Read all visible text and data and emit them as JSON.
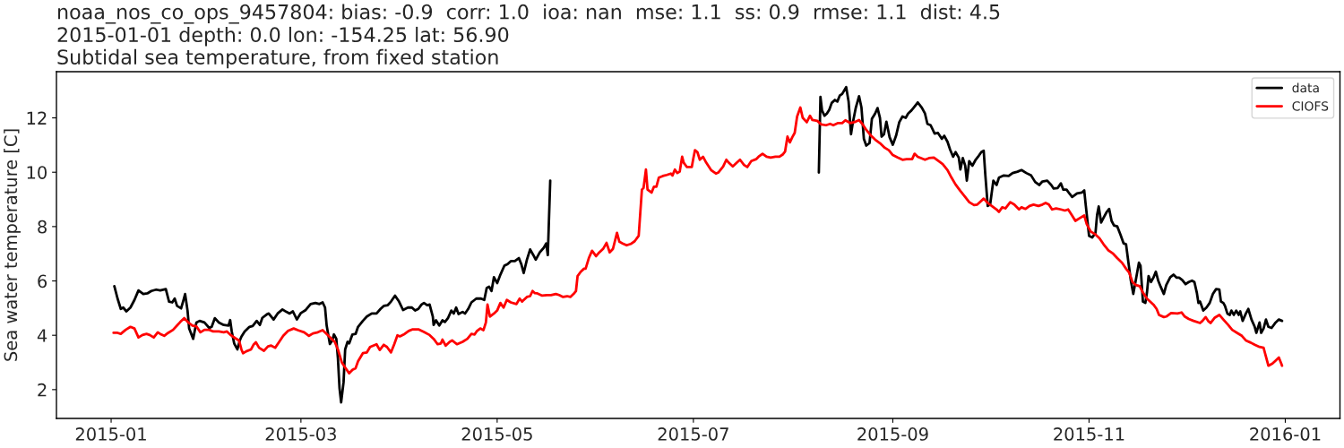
{
  "chart_data": {
    "type": "line",
    "title": "noaa_nos_co_ops_9457804: bias: -0.9  corr: 1.0  ioa: nan  mse: 1.1  ss: 0.9  rmse: 1.1  dist: 4.5\n2015-01-01 depth: 0.0 lon: -154.25 lat: 56.90\nSubtidal sea temperature, from fixed station",
    "ylabel": "Sea water temperature [C]",
    "xlim": [
      "2014-12-15T00:00",
      "2016-01-18T00:00"
    ],
    "xticks": [
      {
        "value": "2015-01-01",
        "label": "2015-01"
      },
      {
        "value": "2015-03-01",
        "label": "2015-03"
      },
      {
        "value": "2015-05-01",
        "label": "2015-05"
      },
      {
        "value": "2015-07-01",
        "label": "2015-07"
      },
      {
        "value": "2015-09-01",
        "label": "2015-09"
      },
      {
        "value": "2015-11-01",
        "label": "2015-11"
      },
      {
        "value": "2016-01-01",
        "label": "2016-01"
      }
    ],
    "ylim": [
      0.94,
      13.7
    ],
    "yticks": [
      2,
      4,
      6,
      8,
      10,
      12
    ],
    "legend": "top right",
    "series": [
      {
        "name": "data",
        "color": "#000000",
        "x": [
          "2015-01-02T00:00",
          "2015-01-03T00:00",
          "2015-01-04T00:00",
          "2015-01-04T18:00",
          "2015-01-05T18:00",
          "2015-01-07T00:00",
          "2015-01-08T06:00",
          "2015-01-09T12:00",
          "2015-01-11T00:00",
          "2015-01-12T06:00",
          "2015-01-13T12:00",
          "2015-01-15T00:00",
          "2015-01-16T06:00",
          "2015-01-18T00:00",
          "2015-01-19T00:00",
          "2015-01-20T00:00",
          "2015-01-20T18:00",
          "2015-01-21T12:00",
          "2015-01-22T18:00",
          "2015-01-23T12:00",
          "2015-01-24T00:00",
          "2015-01-24T18:00",
          "2015-01-25T06:00",
          "2015-01-26T12:00",
          "2015-01-27T12:00",
          "2015-01-28T12:00",
          "2015-01-30T00:00",
          "2015-01-31T12:00",
          "2015-02-01T06:00",
          "2015-02-02T06:00",
          "2015-02-03T12:00",
          "2015-02-05T00:00",
          "2015-02-06T12:00",
          "2015-02-07T00:00",
          "2015-02-07T12:00",
          "2015-02-08T06:00",
          "2015-02-09T06:00",
          "2015-02-10T00:00",
          "2015-02-10T12:00",
          "2015-02-11T12:00",
          "2015-02-13T00:00",
          "2015-02-14T00:00",
          "2015-02-15T06:00",
          "2015-02-16T06:00",
          "2015-02-17T00:00",
          "2015-02-18T12:00",
          "2015-02-19T00:00",
          "2015-02-20T12:00",
          "2015-02-21T18:00",
          "2015-02-23T06:00",
          "2015-02-24T12:00",
          "2015-02-25T12:00",
          "2015-02-26T12:00",
          "2015-02-27T18:00",
          "2015-03-01T00:00",
          "2015-03-02T12:00",
          "2015-03-04T00:00",
          "2015-03-05T12:00",
          "2015-03-06T18:00",
          "2015-03-07T18:00",
          "2015-03-08T12:00",
          "2015-03-09T00:00",
          "2015-03-10T00:00",
          "2015-03-10T18:00",
          "2015-03-11T06:00",
          "2015-03-12T00:00",
          "2015-03-12T12:00",
          "2015-03-13T00:00",
          "2015-03-13T12:00",
          "2015-03-14T06:00",
          "2015-03-14T18:00",
          "2015-03-15T12:00",
          "2015-03-16T00:00",
          "2015-03-17T00:00",
          "2015-03-18T00:00",
          "2015-03-18T18:00",
          "2015-03-20T06:00",
          "2015-03-21T12:00",
          "2015-03-23T00:00",
          "2015-03-24T12:00",
          "2015-03-25T18:00",
          "2015-03-26T18:00",
          "2015-03-28T00:00",
          "2015-03-29T00:00",
          "2015-03-30T06:00",
          "2015-03-31T12:00",
          "2015-04-01T18:00",
          "2015-04-03T06:00",
          "2015-04-04T12:00",
          "2015-04-05T12:00",
          "2015-04-06T12:00",
          "2015-04-07T12:00",
          "2015-04-08T06:00",
          "2015-04-09T06:00",
          "2015-04-10T00:00",
          "2015-04-11T00:00",
          "2015-04-11T06:00",
          "2015-04-12T00:00",
          "2015-04-13T00:00",
          "2015-04-14T00:00",
          "2015-04-14T18:00",
          "2015-04-15T18:00",
          "2015-04-16T18:00",
          "2015-04-17T12:00",
          "2015-04-18T06:00",
          "2015-04-19T00:00",
          "2015-04-20T06:00",
          "2015-04-21T00:00",
          "2015-04-22T00:00",
          "2015-04-23T00:00",
          "2015-04-24T12:00",
          "2015-04-26T00:00",
          "2015-04-27T00:00",
          "2015-04-27T18:00",
          "2015-04-28T12:00",
          "2015-04-29T06:00",
          "2015-04-30T00:00",
          "2015-05-01T00:00",
          "2015-05-02T00:00",
          "2015-05-03T06:00",
          "2015-05-04T06:00",
          "2015-05-05T06:00",
          "2015-05-06T12:00",
          "2015-05-07T18:00",
          "2015-05-08T12:00",
          "2015-05-09T06:00",
          "2015-05-10T06:00",
          "2015-05-11T06:00",
          "2015-05-12T06:00",
          "2015-05-13T00:00",
          "2015-05-14T06:00",
          "2015-05-15T12:00",
          "2015-05-16T06:00",
          "2015-05-16T18:00",
          "2015-05-17T12:00",
          "2015-06-30T00:00",
          "2015-08-09T00:00",
          "2015-08-09T12:00",
          "2015-08-10T00:00",
          "2015-08-10T18:00",
          "2015-08-11T12:00",
          "2015-08-12T06:00",
          "2015-08-13T00:00",
          "2015-08-14T00:00",
          "2015-08-14T18:00",
          "2015-08-15T12:00",
          "2015-08-16T06:00",
          "2015-08-17T12:00",
          "2015-08-18T06:00",
          "2015-08-19T00:00",
          "2015-08-19T12:00",
          "2015-08-20T12:00",
          "2015-08-21T12:00",
          "2015-08-22T06:00",
          "2015-08-23T00:00",
          "2015-08-23T18:00",
          "2015-08-24T18:00",
          "2015-08-25T12:00",
          "2015-08-26T12:00",
          "2015-08-27T06:00",
          "2015-08-28T00:00",
          "2015-08-28T12:00",
          "2015-08-29T06:00",
          "2015-08-30T00:00",
          "2015-08-31T00:00",
          "2015-09-01T00:00",
          "2015-09-02T00:00",
          "2015-09-03T00:00",
          "2015-09-04T00:00",
          "2015-09-05T00:00",
          "2015-09-05T18:00",
          "2015-09-06T18:00",
          "2015-09-07T12:00",
          "2015-09-08T18:00",
          "2015-09-10T00:00",
          "2015-09-11T00:00",
          "2015-09-11T18:00",
          "2015-09-12T18:00",
          "2015-09-14T00:00",
          "2015-09-15T00:00",
          "2015-09-16T06:00",
          "2015-09-17T00:00",
          "2015-09-18T00:00",
          "2015-09-18T18:00",
          "2015-09-19T18:00",
          "2015-09-20T12:00",
          "2015-09-21T12:00",
          "2015-09-22T00:00",
          "2015-09-22T18:00",
          "2015-09-23T12:00",
          "2015-09-24T00:00",
          "2015-09-24T18:00",
          "2015-09-25T18:00",
          "2015-09-26T18:00",
          "2015-09-27T12:00",
          "2015-09-28T12:00",
          "2015-09-29T06:00",
          "2015-09-29T18:00",
          "2015-09-30T12:00",
          "2015-10-01T06:00",
          "2015-10-02T06:00",
          "2015-10-03T06:00",
          "2015-10-04T00:00",
          "2015-10-05T12:00",
          "2015-10-07T00:00",
          "2015-10-08T06:00",
          "2015-10-09T18:00",
          "2015-10-11T00:00",
          "2015-10-12T12:00",
          "2015-10-14T00:00",
          "2015-10-15T06:00",
          "2015-10-16T12:00",
          "2015-10-17T12:00",
          "2015-10-19T00:00",
          "2015-10-20T06:00",
          "2015-10-21T00:00",
          "2015-10-22T06:00",
          "2015-10-23T06:00",
          "2015-10-24T00:00",
          "2015-10-25T00:00",
          "2015-10-26T00:00",
          "2015-10-26T18:00",
          "2015-10-28T06:00",
          "2015-10-29T18:00",
          "2015-10-30T12:00",
          "2015-10-31T00:00",
          "2015-11-01T00:00",
          "2015-11-02T00:00",
          "2015-11-03T00:00",
          "2015-11-03T12:00",
          "2015-11-04T00:00",
          "2015-11-04T18:00",
          "2015-11-05T12:00",
          "2015-11-06T12:00",
          "2015-11-07T06:00",
          "2015-11-08T00:00",
          "2015-11-08T18:00",
          "2015-11-09T18:00",
          "2015-11-10T18:00",
          "2015-11-11T18:00",
          "2015-11-12T12:00",
          "2015-11-13T06:00",
          "2015-11-14T00:00",
          "2015-11-14T18:00",
          "2015-11-15T12:00",
          "2015-11-16T12:00",
          "2015-11-17T00:00",
          "2015-11-17T18:00",
          "2015-11-18T12:00",
          "2015-11-19T00:00",
          "2015-11-19T12:00",
          "2015-11-20T06:00",
          "2015-11-21T00:00",
          "2015-11-21T18:00",
          "2015-11-22T12:00",
          "2015-11-23T06:00",
          "2015-11-24T06:00",
          "2015-11-25T00:00",
          "2015-11-26T06:00",
          "2015-11-27T06:00",
          "2015-11-28T06:00",
          "2015-11-29T00:00",
          "2015-11-30T00:00",
          "2015-12-01T00:00",
          "2015-12-02T00:00",
          "2015-12-03T00:00",
          "2015-12-03T18:00",
          "2015-12-04T12:00",
          "2015-12-05T00:00",
          "2015-12-05T12:00",
          "2015-12-06T12:00",
          "2015-12-07T12:00",
          "2015-12-08T12:00",
          "2015-12-09T12:00",
          "2015-12-10T12:00",
          "2015-12-11T12:00",
          "2015-12-12T00:00",
          "2015-12-12T18:00",
          "2015-12-13T06:00",
          "2015-12-14T00:00",
          "2015-12-14T18:00",
          "2015-12-15T06:00",
          "2015-12-16T00:00",
          "2015-12-16T18:00",
          "2015-12-17T12:00",
          "2015-12-18T00:00",
          "2015-12-18T18:00",
          "2015-12-19T18:00",
          "2015-12-20T12:00",
          "2015-12-21T12:00",
          "2015-12-22T12:00",
          "2015-12-23T00:00",
          "2015-12-24T00:00",
          "2015-12-24T12:00",
          "2015-12-25T06:00",
          "2015-12-26T00:00",
          "2015-12-26T18:00",
          "2015-12-27T18:00",
          "2015-12-29T00:00",
          "2015-12-30T00:00",
          "2015-12-31T00:00"
        ],
        "values": [
          5.81,
          5.35,
          4.97,
          5.02,
          4.88,
          5.02,
          5.3,
          5.65,
          5.52,
          5.54,
          5.63,
          5.68,
          5.65,
          5.7,
          5.24,
          5.21,
          5.35,
          5.08,
          4.99,
          5.3,
          5.52,
          4.91,
          4.25,
          3.87,
          4.47,
          4.53,
          4.47,
          4.27,
          4.31,
          4.63,
          4.47,
          4.38,
          4.36,
          4.56,
          4.14,
          3.7,
          3.48,
          3.81,
          3.95,
          4.14,
          4.31,
          4.34,
          4.53,
          4.38,
          4.64,
          4.78,
          4.8,
          4.58,
          4.8,
          4.95,
          4.86,
          4.8,
          4.88,
          4.58,
          4.82,
          4.93,
          5.15,
          5.19,
          5.15,
          5.21,
          5.02,
          4.36,
          3.68,
          3.81,
          4.03,
          3.87,
          3.15,
          2.05,
          1.53,
          2.27,
          3.48,
          3.76,
          3.7,
          4.03,
          4.05,
          4.31,
          4.53,
          4.69,
          4.8,
          4.8,
          4.97,
          5.08,
          5.11,
          5.24,
          5.46,
          5.24,
          4.93,
          5.02,
          5.02,
          4.91,
          4.97,
          5.13,
          5.19,
          5.11,
          5.13,
          4.69,
          4.38,
          4.55,
          4.36,
          4.55,
          4.49,
          4.64,
          4.91,
          4.8,
          5.02,
          4.78,
          4.86,
          4.8,
          4.97,
          5.21,
          5.35,
          5.35,
          5.3,
          5.74,
          5.79,
          5.63,
          6.14,
          5.92,
          6.23,
          6.56,
          6.62,
          6.73,
          6.73,
          6.84,
          6.62,
          6.29,
          6.78,
          7.16,
          6.95,
          6.78,
          7.05,
          7.22,
          7.38,
          6.95,
          9.69,
          null,
          9.99,
          12.77,
          12.27,
          12.08,
          12.16,
          12.3,
          12.55,
          12.66,
          12.6,
          12.82,
          12.88,
          13.13,
          12.6,
          11.4,
          11.78,
          12.38,
          12.8,
          12.38,
          11.23,
          10.98,
          11.07,
          11.97,
          12.16,
          12.36,
          12.0,
          11.31,
          11.4,
          11.86,
          11.29,
          11.01,
          11.34,
          11.84,
          12.05,
          12.0,
          12.16,
          12.27,
          12.38,
          12.57,
          12.38,
          12.16,
          11.78,
          11.73,
          11.42,
          11.45,
          11.23,
          11.34,
          11.12,
          10.85,
          10.57,
          10.74,
          10.54,
          10.1,
          10.52,
          10.24,
          9.69,
          10.41,
          10.24,
          10.46,
          10.57,
          10.74,
          10.79,
          9.91,
          8.76,
          8.81,
          9.69,
          9.53,
          9.8,
          9.88,
          9.86,
          9.97,
          10.02,
          10.08,
          9.97,
          9.88,
          9.64,
          9.53,
          9.66,
          9.69,
          9.53,
          9.4,
          9.42,
          9.59,
          9.36,
          9.36,
          9.2,
          9.09,
          9.22,
          9.25,
          9.33,
          8.76,
          7.66,
          7.6,
          7.77,
          8.43,
          8.74,
          8.15,
          8.32,
          8.54,
          8.65,
          8.21,
          8.04,
          8.01,
          7.71,
          7.38,
          7.35,
          6.67,
          6.01,
          5.52,
          6.01,
          6.67,
          6.56,
          5.24,
          5.19,
          5.57,
          6.18,
          5.96,
          6.12,
          6.34,
          6.01,
          5.79,
          5.52,
          5.85,
          6.14,
          6.23,
          6.12,
          6.12,
          6.03,
          5.88,
          5.96,
          6.01,
          5.96,
          5.57,
          5.19,
          5.24,
          4.91,
          5.02,
          5.19,
          5.52,
          5.7,
          5.68,
          5.24,
          5.19,
          5.08,
          4.8,
          4.75,
          4.91,
          4.75,
          4.91,
          4.75,
          4.88,
          4.53,
          4.8,
          4.97,
          4.58,
          4.31,
          4.09,
          4.47,
          4.09,
          4.25,
          4.58,
          4.31,
          4.27,
          4.47,
          4.58,
          4.53
        ]
      },
      {
        "name": "CIOFS",
        "color": "#ff0000",
        "x": [
          "2015-01-01T18:00",
          "2015-01-03T00:00",
          "2015-01-04T00:00",
          "2015-01-05T12:00",
          "2015-01-07T00:00",
          "2015-01-08T06:00",
          "2015-01-09T12:00",
          "2015-01-10T18:00",
          "2015-01-12T00:00",
          "2015-01-13T00:00",
          "2015-01-14T06:00",
          "2015-01-15T12:00",
          "2015-01-16T06:00",
          "2015-01-17T12:00",
          "2015-01-18T18:00",
          "2015-01-20T06:00",
          "2015-01-21T12:00",
          "2015-01-22T12:00",
          "2015-01-23T18:00",
          "2015-01-25T00:00",
          "2015-01-26T06:00",
          "2015-01-27T12:00",
          "2015-01-28T18:00",
          "2015-01-30T00:00",
          "2015-01-31T12:00",
          "2015-02-01T18:00",
          "2015-02-03T12:00",
          "2015-02-05T00:00",
          "2015-02-06T00:00",
          "2015-02-07T06:00",
          "2015-02-08T12:00",
          "2015-02-09T18:00",
          "2015-02-10T12:00",
          "2015-02-11T00:00",
          "2015-02-12T00:00",
          "2015-02-13T12:00",
          "2015-02-14T06:00",
          "2015-02-15T00:00",
          "2015-02-16T00:00",
          "2015-02-17T12:00",
          "2015-02-18T18:00",
          "2015-02-19T18:00",
          "2015-02-21T00:00",
          "2015-02-22T06:00",
          "2015-02-23T12:00",
          "2015-02-25T00:00",
          "2015-02-26T18:00",
          "2015-02-28T06:00",
          "2015-03-02T00:00",
          "2015-03-03T12:00",
          "2015-03-04T18:00",
          "2015-03-06T06:00",
          "2015-03-07T18:00",
          "2015-03-09T00:00",
          "2015-03-10T12:00",
          "2015-03-11T12:00",
          "2015-03-12T12:00",
          "2015-03-13T18:00",
          "2015-03-15T00:00",
          "2015-03-16T00:00",
          "2015-03-17T00:00",
          "2015-03-18T00:00",
          "2015-03-18T18:00",
          "2015-03-20T06:00",
          "2015-03-21T12:00",
          "2015-03-22T12:00",
          "2015-03-23T12:00",
          "2015-03-24T12:00",
          "2015-03-25T12:00",
          "2015-03-26T18:00",
          "2015-03-27T18:00",
          "2015-03-29T00:00",
          "2015-03-30T00:00",
          "2015-03-31T00:00",
          "2015-03-31T18:00",
          "2015-04-02T06:00",
          "2015-04-03T12:00",
          "2015-04-04T18:00",
          "2015-04-06T12:00",
          "2015-04-08T06:00",
          "2015-04-10T00:00",
          "2015-04-11T06:00",
          "2015-04-12T12:00",
          "2015-04-13T12:00",
          "2015-04-14T00:00",
          "2015-04-15T00:00",
          "2015-04-16T06:00",
          "2015-04-17T00:00",
          "2015-04-18T12:00",
          "2015-04-20T06:00",
          "2015-04-21T18:00",
          "2015-04-23T00:00",
          "2015-04-24T00:00",
          "2015-04-24T18:00",
          "2015-04-25T18:00",
          "2015-04-26T18:00",
          "2015-04-27T12:00",
          "2015-04-28T00:00",
          "2015-04-28T18:00",
          "2015-04-30T00:00",
          "2015-05-01T00:00",
          "2015-05-02T00:00",
          "2015-05-03T00:00",
          "2015-05-04T00:00",
          "2015-05-05T06:00",
          "2015-05-07T00:00",
          "2015-05-08T00:00",
          "2015-05-08T18:00",
          "2015-05-10T06:00",
          "2015-05-11T06:00",
          "2015-05-12T00:00",
          "2015-05-12T18:00",
          "2015-05-13T12:00",
          "2015-05-15T00:00",
          "2015-05-16T12:00",
          "2015-05-17T18:00",
          "2015-05-19T06:00",
          "2015-05-20T06:00",
          "2015-05-21T12:00",
          "2015-05-22T18:00",
          "2015-05-23T18:00",
          "2015-05-24T18:00",
          "2015-05-25T12:00",
          "2015-05-26T00:00",
          "2015-05-27T00:00",
          "2015-05-28T00:00",
          "2015-05-28T12:00",
          "2015-05-29T12:00",
          "2015-05-30T12:00",
          "2015-05-31T18:00",
          "2015-06-01T18:00",
          "2015-06-03T00:00",
          "2015-06-04T00:00",
          "2015-06-05T00:00",
          "2015-06-06T00:00",
          "2015-06-07T06:00",
          "2015-06-08T00:00",
          "2015-06-09T00:00",
          "2015-06-10T06:00",
          "2015-06-11T12:00",
          "2015-06-12T18:00",
          "2015-06-14T00:00",
          "2015-06-15T00:00",
          "2015-06-15T12:00",
          "2015-06-16T06:00",
          "2015-06-16T18:00",
          "2015-06-18T00:00",
          "2015-06-18T18:00",
          "2015-06-19T12:00",
          "2015-06-20T06:00",
          "2015-06-21T12:00",
          "2015-06-22T18:00",
          "2015-06-24T00:00",
          "2015-06-24T12:00",
          "2015-06-25T06:00",
          "2015-06-26T00:00",
          "2015-06-26T18:00",
          "2015-06-27T12:00",
          "2015-06-28T00:00",
          "2015-06-29T00:00",
          "2015-06-30T12:00",
          "2015-07-01T00:00",
          "2015-07-01T12:00",
          "2015-07-02T06:00",
          "2015-07-03T00:00",
          "2015-07-04T00:00",
          "2015-07-05T00:00",
          "2015-07-06T12:00",
          "2015-07-08T00:00",
          "2015-07-08T18:00",
          "2015-07-10T06:00",
          "2015-07-11T06:00",
          "2015-07-12T00:00",
          "2015-07-13T06:00",
          "2015-07-14T12:00",
          "2015-07-15T12:00",
          "2015-07-16T18:00",
          "2015-07-17T18:00",
          "2015-07-19T00:00",
          "2015-07-20T12:00",
          "2015-07-21T06:00",
          "2015-07-22T12:00",
          "2015-07-23T18:00",
          "2015-07-25T00:00",
          "2015-07-26T12:00",
          "2015-07-27T18:00",
          "2015-07-28T18:00",
          "2015-07-29T12:00",
          "2015-07-30T06:00",
          "2015-07-31T00:00",
          "2015-07-31T18:00",
          "2015-08-01T12:00",
          "2015-08-02T06:00",
          "2015-08-03T06:00",
          "2015-08-04T00:00",
          "2015-08-05T06:00",
          "2015-08-06T06:00",
          "2015-08-07T00:00",
          "2015-08-08T12:00",
          "2015-08-09T18:00",
          "2015-08-11T06:00",
          "2015-08-12T12:00",
          "2015-08-13T12:00",
          "2015-08-15T00:00",
          "2015-08-16T06:00",
          "2015-08-17T06:00",
          "2015-08-18T18:00",
          "2015-08-20T00:00",
          "2015-08-21T12:00",
          "2015-08-22T12:00",
          "2015-08-23T18:00",
          "2015-08-25T06:00",
          "2015-08-26T12:00",
          "2015-08-28T00:00",
          "2015-08-29T12:00",
          "2015-08-30T18:00",
          "2015-09-01T00:00",
          "2015-09-02T12:00",
          "2015-09-04T00:00",
          "2015-09-05T06:00",
          "2015-09-07T00:00",
          "2015-09-07T18:00",
          "2015-09-08T18:00",
          "2015-09-11T00:00",
          "2015-09-12T06:00",
          "2015-09-13T18:00",
          "2015-09-15T00:00",
          "2015-09-16T12:00",
          "2015-09-18T00:00",
          "2015-09-19T06:00",
          "2015-09-20T12:00",
          "2015-09-22T00:00",
          "2015-09-23T12:00",
          "2015-09-24T18:00",
          "2015-09-26T06:00",
          "2015-09-27T06:00",
          "2015-09-28T06:00",
          "2015-09-29T06:00",
          "2015-09-30T12:00",
          "2015-10-01T18:00",
          "2015-10-03T06:00",
          "2015-10-04T00:00",
          "2015-10-05T00:00",
          "2015-10-06T00:00",
          "2015-10-07T12:00",
          "2015-10-08T18:00",
          "2015-10-10T06:00",
          "2015-10-11T00:00",
          "2015-10-12T06:00",
          "2015-10-13T12:00",
          "2015-10-14T18:00",
          "2015-10-16T06:00",
          "2015-10-17T12:00",
          "2015-10-18T12:00",
          "2015-10-19T12:00",
          "2015-10-20T12:00",
          "2015-10-21T18:00",
          "2015-10-23T06:00",
          "2015-10-24T12:00",
          "2015-10-25T12:00",
          "2015-10-26T12:00",
          "2015-10-27T18:00",
          "2015-10-29T06:00",
          "2015-10-30T12:00",
          "2015-10-31T06:00",
          "2015-11-01T12:00",
          "2015-11-03T00:00",
          "2015-11-04T06:00",
          "2015-11-05T12:00",
          "2015-11-07T00:00",
          "2015-11-08T12:00",
          "2015-11-09T18:00",
          "2015-11-11T06:00",
          "2015-11-12T12:00",
          "2015-11-13T12:00",
          "2015-11-14T12:00",
          "2015-11-15T12:00",
          "2015-11-16T18:00",
          "2015-11-17T18:00",
          "2015-11-19T00:00",
          "2015-11-21T00:00",
          "2015-11-22T00:00",
          "2015-11-22T18:00",
          "2015-11-24T06:00",
          "2015-11-25T00:00",
          "2015-11-26T12:00",
          "2015-11-28T12:00",
          "2015-11-29T18:00",
          "2015-11-30T18:00",
          "2015-12-02T00:00",
          "2015-12-03T12:00",
          "2015-12-05T12:00",
          "2015-12-06T06:00",
          "2015-12-07T06:00",
          "2015-12-08T00:00",
          "2015-12-08T18:00",
          "2015-12-10T00:00",
          "2015-12-11T12:00",
          "2015-12-12T18:00",
          "2015-12-14T06:00",
          "2015-12-15T12:00",
          "2015-12-17T00:00",
          "2015-12-18T12:00",
          "2015-12-19T18:00",
          "2015-12-21T06:00",
          "2015-12-22T12:00",
          "2015-12-24T00:00",
          "2015-12-25T06:00",
          "2015-12-26T00:00",
          "2015-12-26T18:00",
          "2015-12-28T00:00",
          "2015-12-29T00:00",
          "2015-12-30T00:00",
          "2015-12-30T18:00",
          "2015-12-31T00:00"
        ],
        "values": [
          4.09,
          4.09,
          4.05,
          4.2,
          4.31,
          4.25,
          3.92,
          4.01,
          4.05,
          4.01,
          3.92,
          4.11,
          4.05,
          3.98,
          4.09,
          4.2,
          4.36,
          4.49,
          4.63,
          4.47,
          4.36,
          4.33,
          4.11,
          4.2,
          4.2,
          4.14,
          4.14,
          4.11,
          4.14,
          4.0,
          3.9,
          3.81,
          3.48,
          3.34,
          3.41,
          3.48,
          3.65,
          3.74,
          3.54,
          3.43,
          3.59,
          3.62,
          3.54,
          3.76,
          3.98,
          4.16,
          4.25,
          4.18,
          4.11,
          3.98,
          4.07,
          4.11,
          4.19,
          4.05,
          3.87,
          3.76,
          3.48,
          2.99,
          2.77,
          2.6,
          2.73,
          2.79,
          3.04,
          3.34,
          3.37,
          3.57,
          3.62,
          3.67,
          3.46,
          3.65,
          3.57,
          3.37,
          3.67,
          4.0,
          3.96,
          4.05,
          4.16,
          4.22,
          4.22,
          4.12,
          4.01,
          3.87,
          3.67,
          3.7,
          3.84,
          3.62,
          3.76,
          3.81,
          3.67,
          3.76,
          3.87,
          4.05,
          4.03,
          4.16,
          4.25,
          4.19,
          4.47,
          5.13,
          4.69,
          4.8,
          4.91,
          5.19,
          5.02,
          5.3,
          5.21,
          5.15,
          5.35,
          5.24,
          5.41,
          5.44,
          5.63,
          5.55,
          5.54,
          5.46,
          5.48,
          5.48,
          5.52,
          5.48,
          5.41,
          5.44,
          5.41,
          5.52,
          5.63,
          6.18,
          6.34,
          6.45,
          6.45,
          6.84,
          7.11,
          6.91,
          7.05,
          7.19,
          7.4,
          7.05,
          7.18,
          7.77,
          7.44,
          7.38,
          7.31,
          7.36,
          7.46,
          7.66,
          9.36,
          9.42,
          10.1,
          9.36,
          9.25,
          9.47,
          9.47,
          9.8,
          9.86,
          9.9,
          9.95,
          9.88,
          10.1,
          9.97,
          10.02,
          10.57,
          10.35,
          10.19,
          10.19,
          10.52,
          10.81,
          10.74,
          10.46,
          10.57,
          10.35,
          10.08,
          9.95,
          9.99,
          10.21,
          10.46,
          10.35,
          10.21,
          10.35,
          10.46,
          10.27,
          10.19,
          10.41,
          10.48,
          10.57,
          10.68,
          10.57,
          10.54,
          10.57,
          10.57,
          10.65,
          10.76,
          11.31,
          11.1,
          11.29,
          11.45,
          12.05,
          12.38,
          12.0,
          11.84,
          12.08,
          11.92,
          11.89,
          11.76,
          11.73,
          11.78,
          11.73,
          11.81,
          11.81,
          11.91,
          11.81,
          11.84,
          11.92,
          11.78,
          11.56,
          11.34,
          11.2,
          11.07,
          10.9,
          10.81,
          10.63,
          10.54,
          10.46,
          10.48,
          10.48,
          10.68,
          10.57,
          10.46,
          10.52,
          10.54,
          10.43,
          10.3,
          10.08,
          9.8,
          9.55,
          9.31,
          9.09,
          8.9,
          8.79,
          8.81,
          8.92,
          9.03,
          8.87,
          8.76,
          8.63,
          8.54,
          8.71,
          8.67,
          8.9,
          8.81,
          8.63,
          8.71,
          8.65,
          8.76,
          8.81,
          8.76,
          8.81,
          8.87,
          8.81,
          8.63,
          8.67,
          8.63,
          8.59,
          8.63,
          8.45,
          8.21,
          8.32,
          8.41,
          8.1,
          7.82,
          7.71,
          7.57,
          7.35,
          7.13,
          7.0,
          6.84,
          6.67,
          6.45,
          6.3,
          5.96,
          5.85,
          5.81,
          5.57,
          5.35,
          5.13,
          4.97,
          4.75,
          4.67,
          4.69,
          4.82,
          4.8,
          4.84,
          4.69,
          4.6,
          4.53,
          4.45,
          4.53,
          4.67,
          4.53,
          4.45,
          4.64,
          4.75,
          4.58,
          4.38,
          4.2,
          4.09,
          3.98,
          3.81,
          3.73,
          3.65,
          3.57,
          3.54,
          3.21,
          2.88,
          2.96,
          3.07,
          3.18,
          2.96,
          2.88
        ]
      }
    ]
  }
}
